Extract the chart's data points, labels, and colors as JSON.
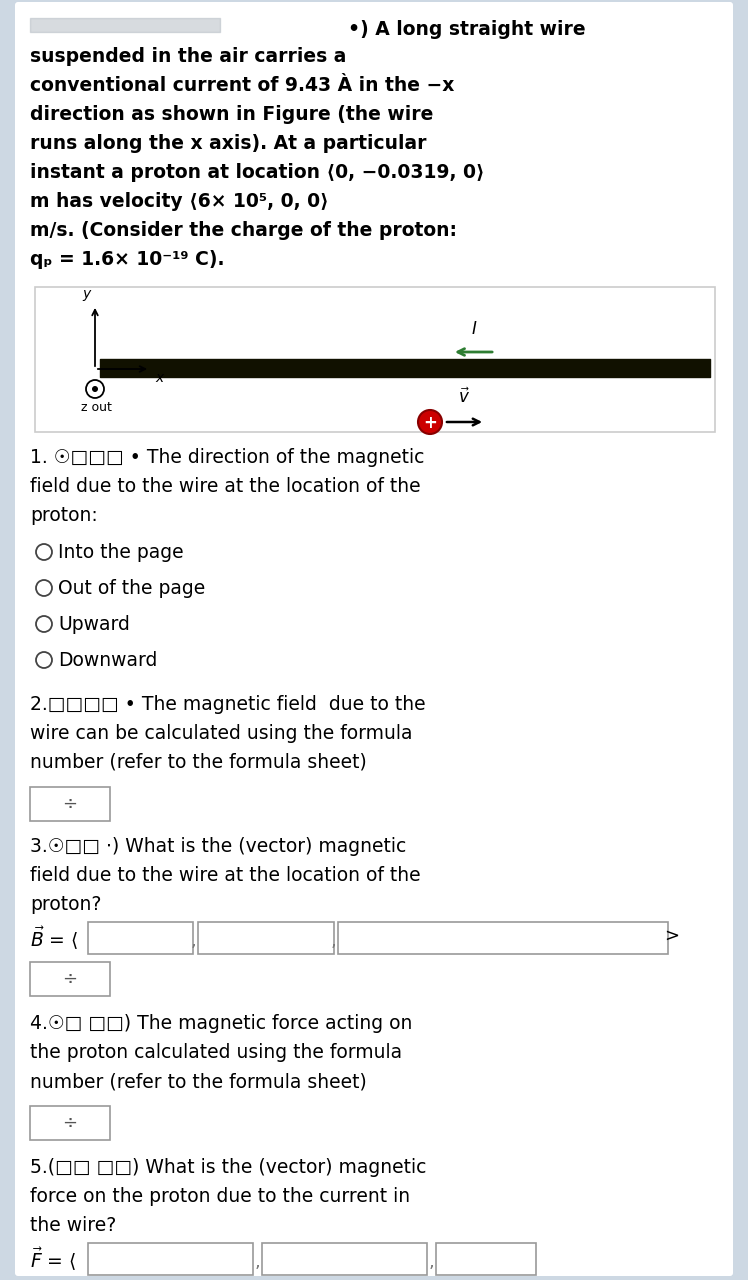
{
  "bg_color": "#cdd8e3",
  "white_bg": "#ffffff",
  "text_color": "#000000",
  "intro_lines": [
    "•) A long straight wire",
    "suspended in the air carries a",
    "conventional current of 9.43 À in the −x",
    "direction as shown in Figure (the wire",
    "runs along the x axis). At a particular",
    "instant a proton at location ⟨0, −0.0319, 0⟩",
    "m has velocity ⟨6× 10⁵, 0, 0⟩",
    "m/s. (Consider the charge of the proton:",
    "qₚ = 1.6× 10⁻¹⁹ C)."
  ],
  "q1_options": [
    "Into the page",
    "Out of the page",
    "Upward",
    "Downward"
  ],
  "dropdown_symbol": "÷",
  "wire_color": "#1a1a00",
  "current_arrow_color": "#2e7d32",
  "proton_color": "#cc0000"
}
